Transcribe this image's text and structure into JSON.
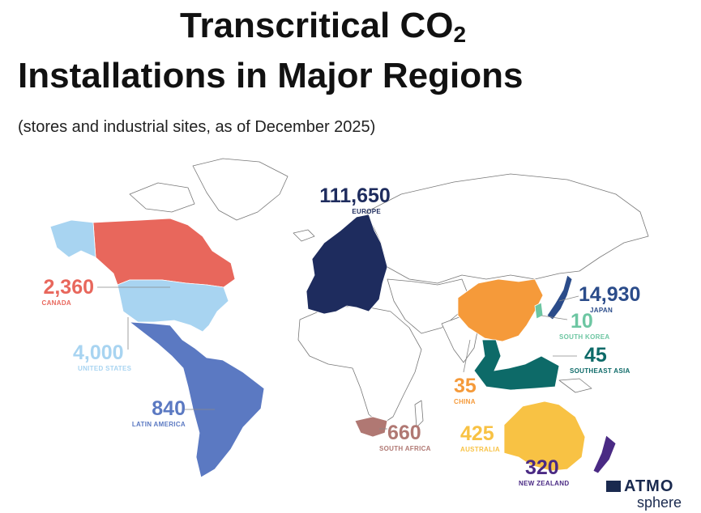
{
  "title": {
    "line1_text": "Transcritical CO",
    "line1_sub": "2",
    "line2": "Installations in Major Regions"
  },
  "subtitle": "(stores and industrial sites, as of December 2025)",
  "regions": {
    "europe": {
      "value": "111,650",
      "name": "EUROPE",
      "color": "#1e2c5e"
    },
    "canada": {
      "value": "2,360",
      "name": "CANADA",
      "color": "#e8675c"
    },
    "united_states": {
      "value": "4,000",
      "name": "UNITED STATES",
      "color": "#a8d4f1"
    },
    "latin_america": {
      "value": "840",
      "name": "LATIN AMERICA",
      "color": "#5b79c2"
    },
    "south_africa": {
      "value": "660",
      "name": "SOUTH AFRICA",
      "color": "#b07873"
    },
    "japan": {
      "value": "14,930",
      "name": "JAPAN",
      "color": "#2b4c8a"
    },
    "south_korea": {
      "value": "10",
      "name": "SOUTH KOREA",
      "color": "#6dc6a2"
    },
    "southeast_asia": {
      "value": "45",
      "name": "SOUTHEAST ASIA",
      "color": "#0d6a68"
    },
    "china": {
      "value": "35",
      "name": "CHINA",
      "color": "#f59a3a"
    },
    "australia": {
      "value": "425",
      "name": "AUSTRALIA",
      "color": "#f8c244"
    },
    "new_zealand": {
      "value": "320",
      "name": "NEW ZEALAND",
      "color": "#4a2a84"
    }
  },
  "logo": {
    "top": "ATMO",
    "bottom": "sphere"
  }
}
